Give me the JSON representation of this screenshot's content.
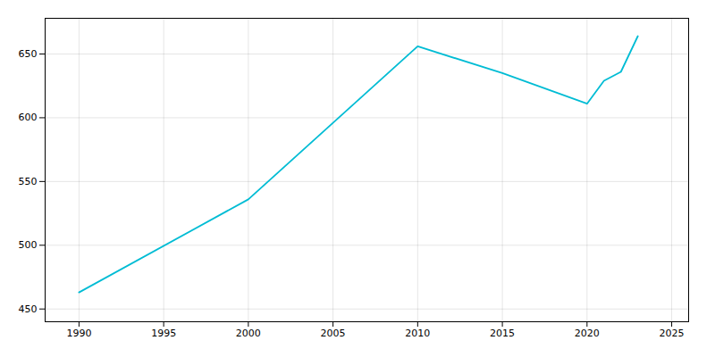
{
  "chart_data": {
    "type": "line",
    "x": [
      1990,
      2000,
      2010,
      2015,
      2020,
      2021,
      2022,
      2023
    ],
    "values": [
      463,
      536,
      656,
      635,
      611,
      629,
      636,
      664
    ],
    "color": "#00bcd4",
    "xlim": [
      1988,
      2026
    ],
    "ylim": [
      440,
      678
    ],
    "xticks": [
      1990,
      1995,
      2000,
      2005,
      2010,
      2015,
      2020,
      2025
    ],
    "yticks": [
      450,
      500,
      550,
      600,
      650
    ],
    "grid": true
  }
}
